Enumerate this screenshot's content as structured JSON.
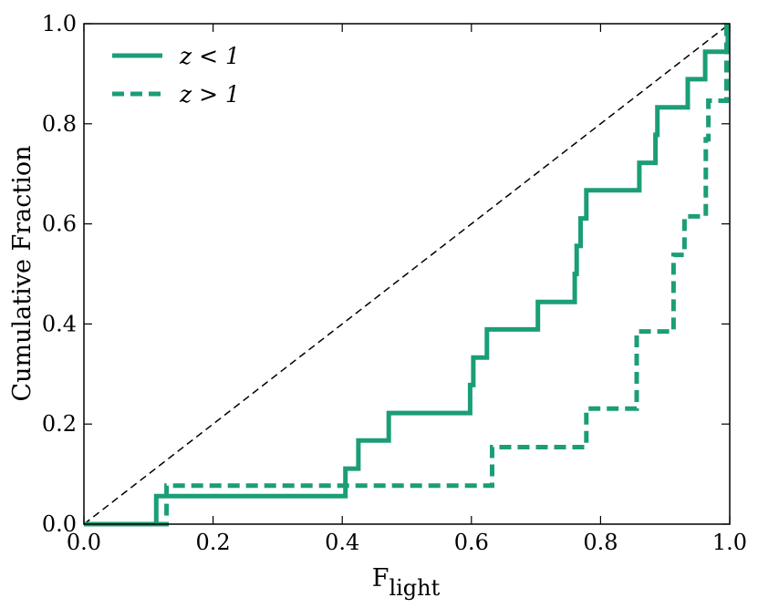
{
  "chart_data": {
    "type": "line",
    "title": "",
    "xlabel": "F",
    "xlabel_subscript": "light",
    "ylabel": "Cumulative Fraction",
    "xlim": [
      0.0,
      1.0
    ],
    "ylim": [
      0.0,
      1.0
    ],
    "xticks": [
      "0.0",
      "0.2",
      "0.4",
      "0.6",
      "0.8",
      "1.0"
    ],
    "yticks": [
      "0.0",
      "0.2",
      "0.4",
      "0.6",
      "0.8",
      "1.0"
    ],
    "grid": false,
    "legend_position": "top-left",
    "series": [
      {
        "name": "z < 1",
        "style": "solid",
        "color": "#1b9e77",
        "points": [
          [
            0.0,
            0.0
          ],
          [
            0.112,
            0.0
          ],
          [
            0.112,
            0.056
          ],
          [
            0.405,
            0.056
          ],
          [
            0.405,
            0.111
          ],
          [
            0.425,
            0.111
          ],
          [
            0.425,
            0.167
          ],
          [
            0.472,
            0.167
          ],
          [
            0.472,
            0.222
          ],
          [
            0.598,
            0.222
          ],
          [
            0.598,
            0.278
          ],
          [
            0.603,
            0.278
          ],
          [
            0.603,
            0.333
          ],
          [
            0.624,
            0.333
          ],
          [
            0.624,
            0.389
          ],
          [
            0.703,
            0.389
          ],
          [
            0.703,
            0.444
          ],
          [
            0.76,
            0.444
          ],
          [
            0.76,
            0.5
          ],
          [
            0.763,
            0.5
          ],
          [
            0.763,
            0.556
          ],
          [
            0.769,
            0.556
          ],
          [
            0.769,
            0.611
          ],
          [
            0.778,
            0.611
          ],
          [
            0.778,
            0.667
          ],
          [
            0.86,
            0.667
          ],
          [
            0.86,
            0.722
          ],
          [
            0.885,
            0.722
          ],
          [
            0.885,
            0.778
          ],
          [
            0.888,
            0.778
          ],
          [
            0.888,
            0.833
          ],
          [
            0.935,
            0.833
          ],
          [
            0.935,
            0.889
          ],
          [
            0.962,
            0.889
          ],
          [
            0.962,
            0.944
          ],
          [
            0.997,
            0.944
          ],
          [
            0.997,
            1.0
          ]
        ]
      },
      {
        "name": "z > 1",
        "style": "dashed",
        "color": "#1b9e77",
        "points": [
          [
            0.0,
            0.0
          ],
          [
            0.128,
            0.0
          ],
          [
            0.128,
            0.077
          ],
          [
            0.632,
            0.077
          ],
          [
            0.632,
            0.154
          ],
          [
            0.778,
            0.154
          ],
          [
            0.778,
            0.231
          ],
          [
            0.856,
            0.231
          ],
          [
            0.856,
            0.385
          ],
          [
            0.913,
            0.385
          ],
          [
            0.913,
            0.538
          ],
          [
            0.93,
            0.538
          ],
          [
            0.93,
            0.615
          ],
          [
            0.963,
            0.615
          ],
          [
            0.963,
            0.769
          ],
          [
            0.967,
            0.769
          ],
          [
            0.967,
            0.846
          ],
          [
            0.995,
            0.846
          ],
          [
            0.995,
            1.0
          ]
        ]
      },
      {
        "name": "",
        "style": "reference-dashed",
        "color": "#000000",
        "points": [
          [
            0.0,
            0.0
          ],
          [
            1.0,
            1.0
          ]
        ]
      }
    ]
  }
}
